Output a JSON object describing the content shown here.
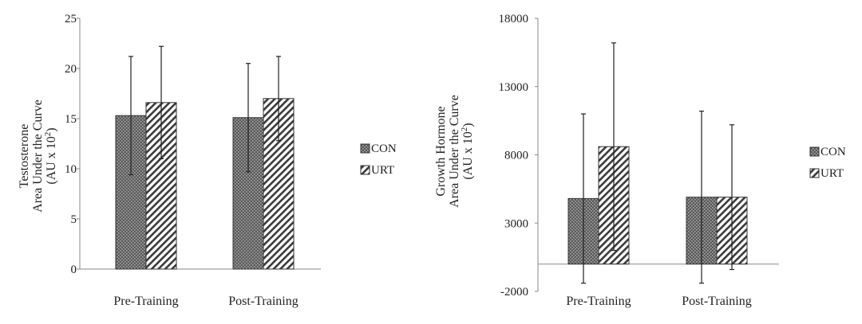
{
  "chart_data": [
    {
      "type": "bar",
      "categories": [
        "Pre-Training",
        "Post-Training"
      ],
      "ylabel_lines": [
        "Testosterone",
        "Area Under the Curve",
        "(AU x 10",
        "2",
        ")"
      ],
      "ylim": [
        0,
        25
      ],
      "yticks": [
        0,
        5,
        10,
        15,
        20,
        25
      ],
      "grid": false,
      "legend_position": "right",
      "series": [
        {
          "name": "CON",
          "pattern": "dots",
          "values": [
            15.3,
            15.1
          ],
          "error": [
            5.9,
            5.4
          ]
        },
        {
          "name": "URT",
          "pattern": "diagonal",
          "values": [
            16.6,
            17.0
          ],
          "error": [
            5.6,
            4.2
          ]
        }
      ]
    },
    {
      "type": "bar",
      "categories": [
        "Pre-Training",
        "Post-Training"
      ],
      "ylabel_lines": [
        "Growth Hormone",
        "Area Under the Curve",
        "(AU x 10",
        "2",
        ")"
      ],
      "ylim": [
        -2000,
        18000
      ],
      "yticks": [
        -2000,
        3000,
        8000,
        13000,
        18000
      ],
      "grid": false,
      "legend_position": "right",
      "series": [
        {
          "name": "CON",
          "pattern": "dots",
          "values": [
            4800,
            4900
          ],
          "error": [
            6200,
            6300
          ]
        },
        {
          "name": "URT",
          "pattern": "diagonal",
          "values": [
            8600,
            4900
          ],
          "error": [
            7600,
            5300
          ]
        }
      ]
    }
  ]
}
